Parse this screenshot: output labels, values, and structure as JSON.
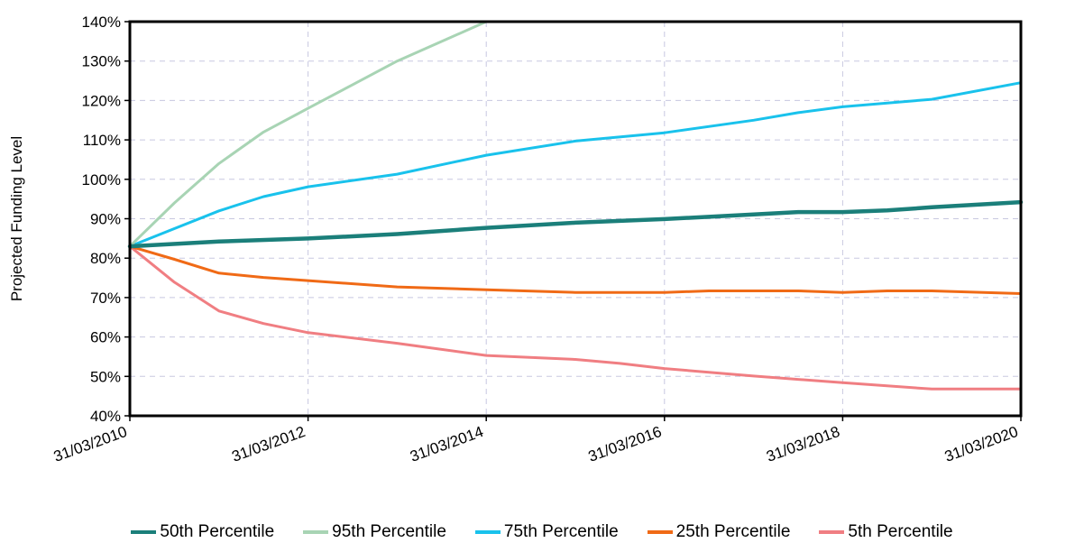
{
  "chart_data": {
    "type": "line",
    "title": "",
    "xlabel": "",
    "ylabel": "Projected Funding Level",
    "x_tick_labels": [
      "31/03/2010",
      "31/03/2012",
      "31/03/2014",
      "31/03/2016",
      "31/03/2018",
      "31/03/2020"
    ],
    "x_range": [
      2010,
      2020
    ],
    "y_tick_labels": [
      "40%",
      "50%",
      "60%",
      "70%",
      "80%",
      "90%",
      "100%",
      "110%",
      "120%",
      "130%",
      "140%"
    ],
    "ylim": [
      40,
      140
    ],
    "grid": true,
    "legend_position": "bottom",
    "series": [
      {
        "name": "50th Percentile",
        "color": "#1b7f7a",
        "x": [
          2010,
          2011,
          2012,
          2013,
          2014,
          2015,
          2016,
          2017,
          2017.5,
          2018,
          2018.5,
          2019,
          2020
        ],
        "y": [
          83,
          84.2,
          85,
          86.1,
          87.7,
          89,
          89.9,
          91.1,
          91.7,
          91.7,
          92.1,
          92.9,
          94.2
        ]
      },
      {
        "name": "95th Percentile",
        "color": "#a8d4b4",
        "x": [
          2010,
          2010.5,
          2011,
          2011.5,
          2012,
          2012.5,
          2013,
          2013.5,
          2014
        ],
        "y": [
          83,
          94,
          104,
          112,
          118,
          124,
          130,
          135,
          140
        ]
      },
      {
        "name": "75th Percentile",
        "color": "#19c2ec",
        "x": [
          2010,
          2011,
          2011.5,
          2012,
          2013,
          2014,
          2015,
          2016,
          2017,
          2017.5,
          2018,
          2019,
          2020
        ],
        "y": [
          83,
          92,
          95.6,
          98.1,
          101.3,
          106.1,
          109.7,
          111.8,
          115,
          116.9,
          118.4,
          120.3,
          124.5
        ]
      },
      {
        "name": "25th Percentile",
        "color": "#f06a16",
        "x": [
          2010,
          2010.5,
          2011,
          2011.5,
          2012,
          2013,
          2014,
          2015,
          2016,
          2016.5,
          2017,
          2017.5,
          2018,
          2018.5,
          2019,
          2020
        ],
        "y": [
          83,
          79.7,
          76.2,
          75.1,
          74.3,
          72.7,
          72,
          71.3,
          71.3,
          71.7,
          71.7,
          71.7,
          71.3,
          71.7,
          71.7,
          71
        ]
      },
      {
        "name": "5th Percentile",
        "color": "#f07e82",
        "x": [
          2010,
          2010.5,
          2011,
          2011.5,
          2012,
          2013,
          2014,
          2015,
          2015.5,
          2016,
          2017,
          2018,
          2019,
          2020
        ],
        "y": [
          83,
          73.9,
          66.6,
          63.4,
          61.1,
          58.4,
          55.3,
          54.3,
          53.3,
          52,
          50.1,
          48.4,
          46.8,
          46.8
        ]
      }
    ]
  }
}
